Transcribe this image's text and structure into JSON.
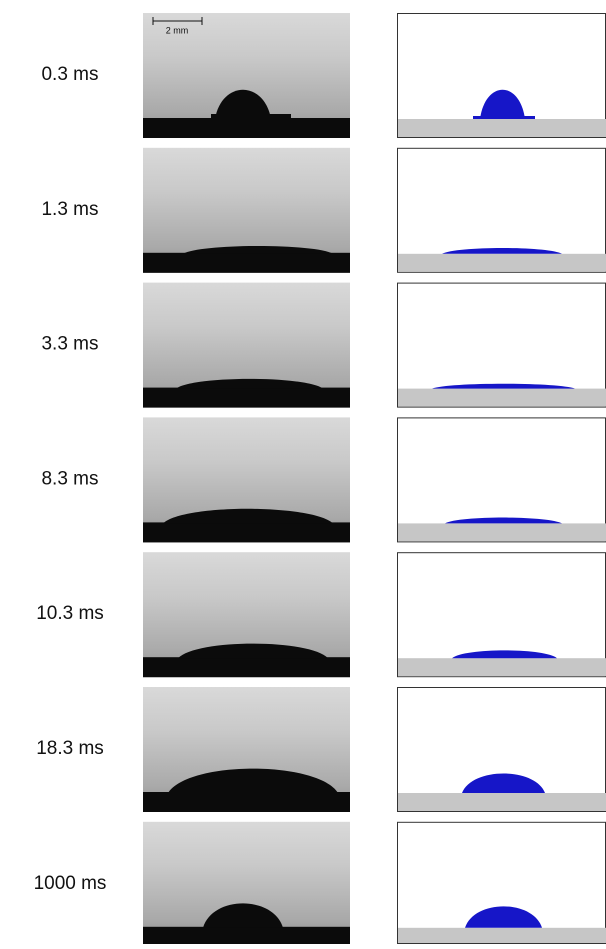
{
  "figure": {
    "scale_bar": "2 mm",
    "rows": [
      {
        "label": "0.3 ms"
      },
      {
        "label": "1.3 ms"
      },
      {
        "label": "3.3 ms"
      },
      {
        "label": "8.3 ms"
      },
      {
        "label": "10.3 ms"
      },
      {
        "label": "18.3 ms"
      },
      {
        "label": "1000 ms"
      }
    ]
  }
}
